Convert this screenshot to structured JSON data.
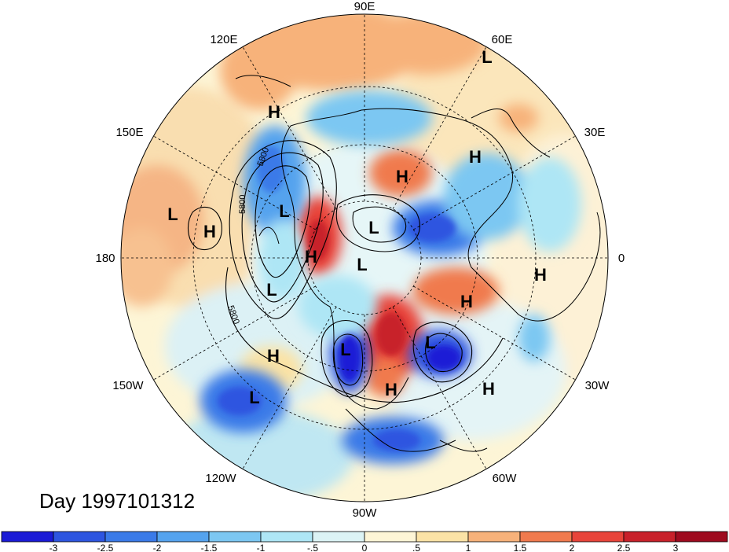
{
  "title": "Day 1997101312",
  "longitude_labels": [
    {
      "text": "90E"
    },
    {
      "text": "60E"
    },
    {
      "text": "30E"
    },
    {
      "text": "0"
    },
    {
      "text": "30W"
    },
    {
      "text": "60W"
    },
    {
      "text": "90W"
    },
    {
      "text": "120W"
    },
    {
      "text": "150W"
    },
    {
      "text": "180"
    },
    {
      "text": "150E"
    },
    {
      "text": "120E"
    }
  ],
  "pressure_systems": [
    {
      "type": "L",
      "region": "west-siberia-60E"
    },
    {
      "type": "H",
      "region": "east-siberia"
    },
    {
      "type": "H",
      "region": "kara-sea"
    },
    {
      "type": "H",
      "region": "western-russia"
    },
    {
      "type": "L",
      "region": "north-pacific"
    },
    {
      "type": "H",
      "region": "north-pacific-date-line"
    },
    {
      "type": "L",
      "region": "bering-sea"
    },
    {
      "type": "L",
      "region": "arctic-ocean"
    },
    {
      "type": "H",
      "region": "alaska"
    },
    {
      "type": "L",
      "region": "north-pole"
    },
    {
      "type": "L",
      "region": "gulf-of-alaska"
    },
    {
      "type": "H",
      "region": "north-atlantic"
    },
    {
      "type": "H",
      "region": "west-africa"
    },
    {
      "type": "H",
      "region": "northeast-pacific"
    },
    {
      "type": "L",
      "region": "central-canada"
    },
    {
      "type": "L",
      "region": "labrador-sea"
    },
    {
      "type": "H",
      "region": "eastern-us"
    },
    {
      "type": "H",
      "region": "central-atlantic"
    },
    {
      "type": "L",
      "region": "subtropical-pacific"
    }
  ],
  "contour_labels": [
    "5800",
    "5800",
    "5800"
  ],
  "colorbar": {
    "ticks": [
      "-3",
      "-2.5",
      "-2",
      "-1.5",
      "-1",
      "-.5",
      "0",
      ".5",
      "1",
      "1.5",
      "2",
      "2.5",
      "3"
    ],
    "colors": [
      "#1a1ad6",
      "#2d55e0",
      "#3a7ae8",
      "#55a3ee",
      "#7cc7f2",
      "#aee6f5",
      "#dcf3f5",
      "#fdf5d6",
      "#fbe3a6",
      "#f7b27a",
      "#f07a4e",
      "#e8443a",
      "#c8202a",
      "#9e0a1e"
    ]
  },
  "colors": {
    "strong_negative": "#2d55e0",
    "negative": "#7cc7f2",
    "weak_negative": "#dcf3f5",
    "weak_positive": "#fbe3a6",
    "positive": "#f7b27a",
    "strong_positive": "#e8443a"
  }
}
